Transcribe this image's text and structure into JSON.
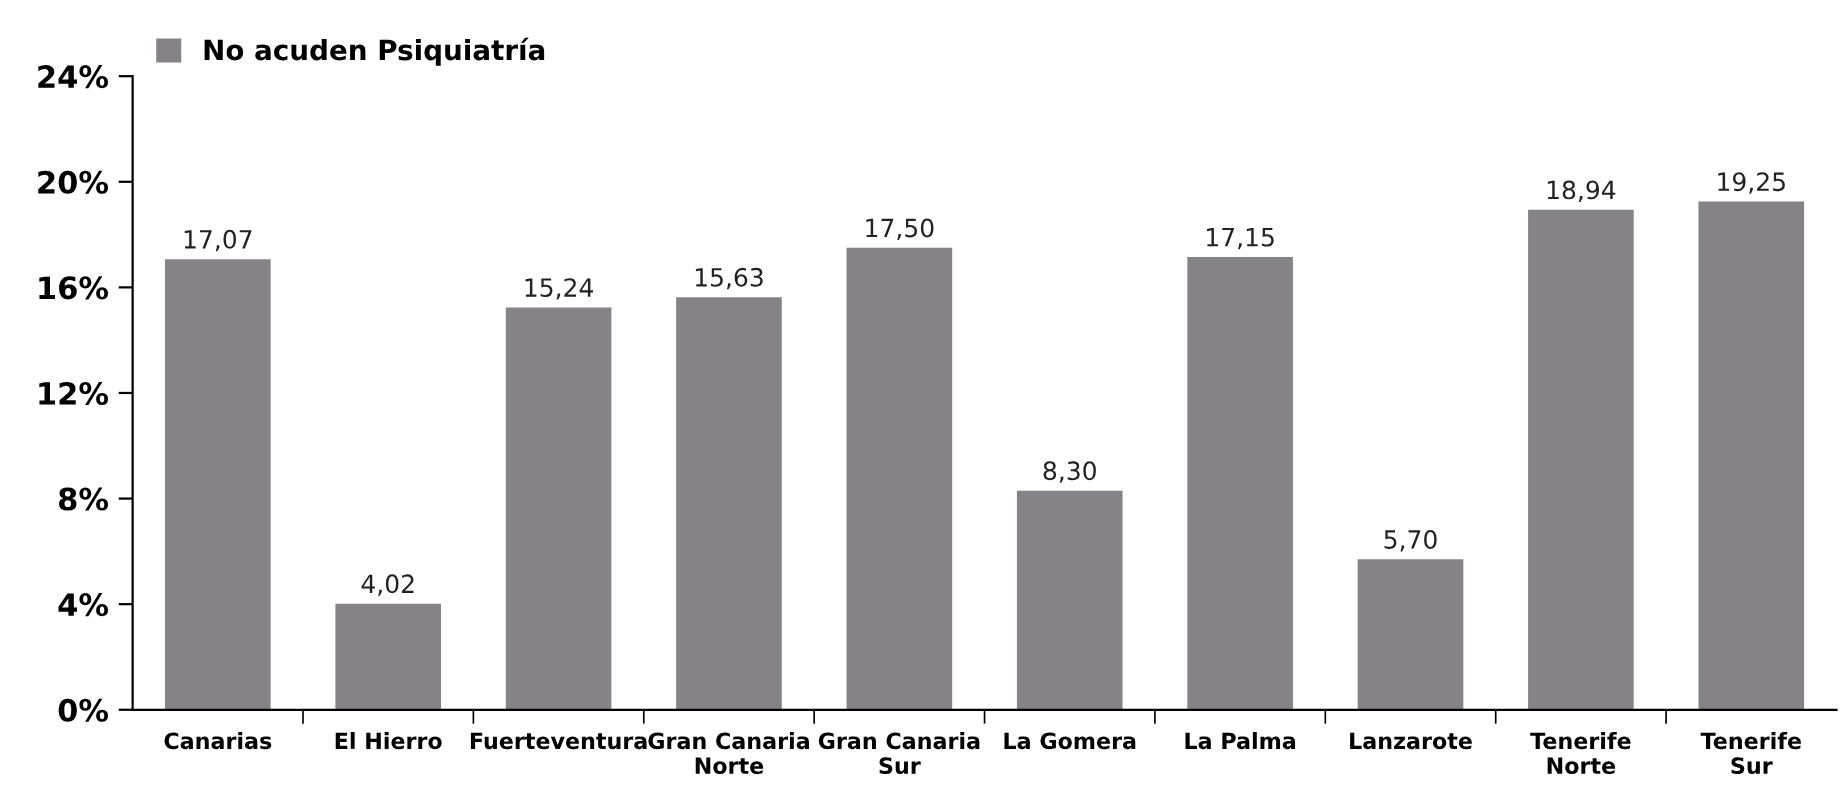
{
  "chart_data": {
    "type": "bar",
    "categories": [
      "Canarias",
      "El Hierro",
      "Fuerteventura",
      "Gran Canaria\nNorte",
      "Gran Canaria\nSur",
      "La Gomera",
      "La Palma",
      "Lanzarote",
      "Tenerife\nNorte",
      "Tenerife\nSur"
    ],
    "series": [
      {
        "name": "No acuden Psiquiatría",
        "color": "#858387",
        "values": [
          17.07,
          4.02,
          15.24,
          15.63,
          17.5,
          8.3,
          17.15,
          5.7,
          18.94,
          19.25
        ],
        "value_labels": [
          "17,07",
          "4,02",
          "15,24",
          "15,63",
          "17,50",
          "8,30",
          "17,15",
          "5,70",
          "18,94",
          "19,25"
        ]
      }
    ],
    "ylim": [
      0,
      24
    ],
    "yticks": [
      {
        "value": 0,
        "label": "0%"
      },
      {
        "value": 4,
        "label": "4%"
      },
      {
        "value": 8,
        "label": "8%"
      },
      {
        "value": 12,
        "label": "12%"
      },
      {
        "value": 16,
        "label": "16%"
      },
      {
        "value": 20,
        "label": "20%"
      },
      {
        "value": 24,
        "label": "24%"
      }
    ],
    "grid": false,
    "legend": "top left"
  }
}
